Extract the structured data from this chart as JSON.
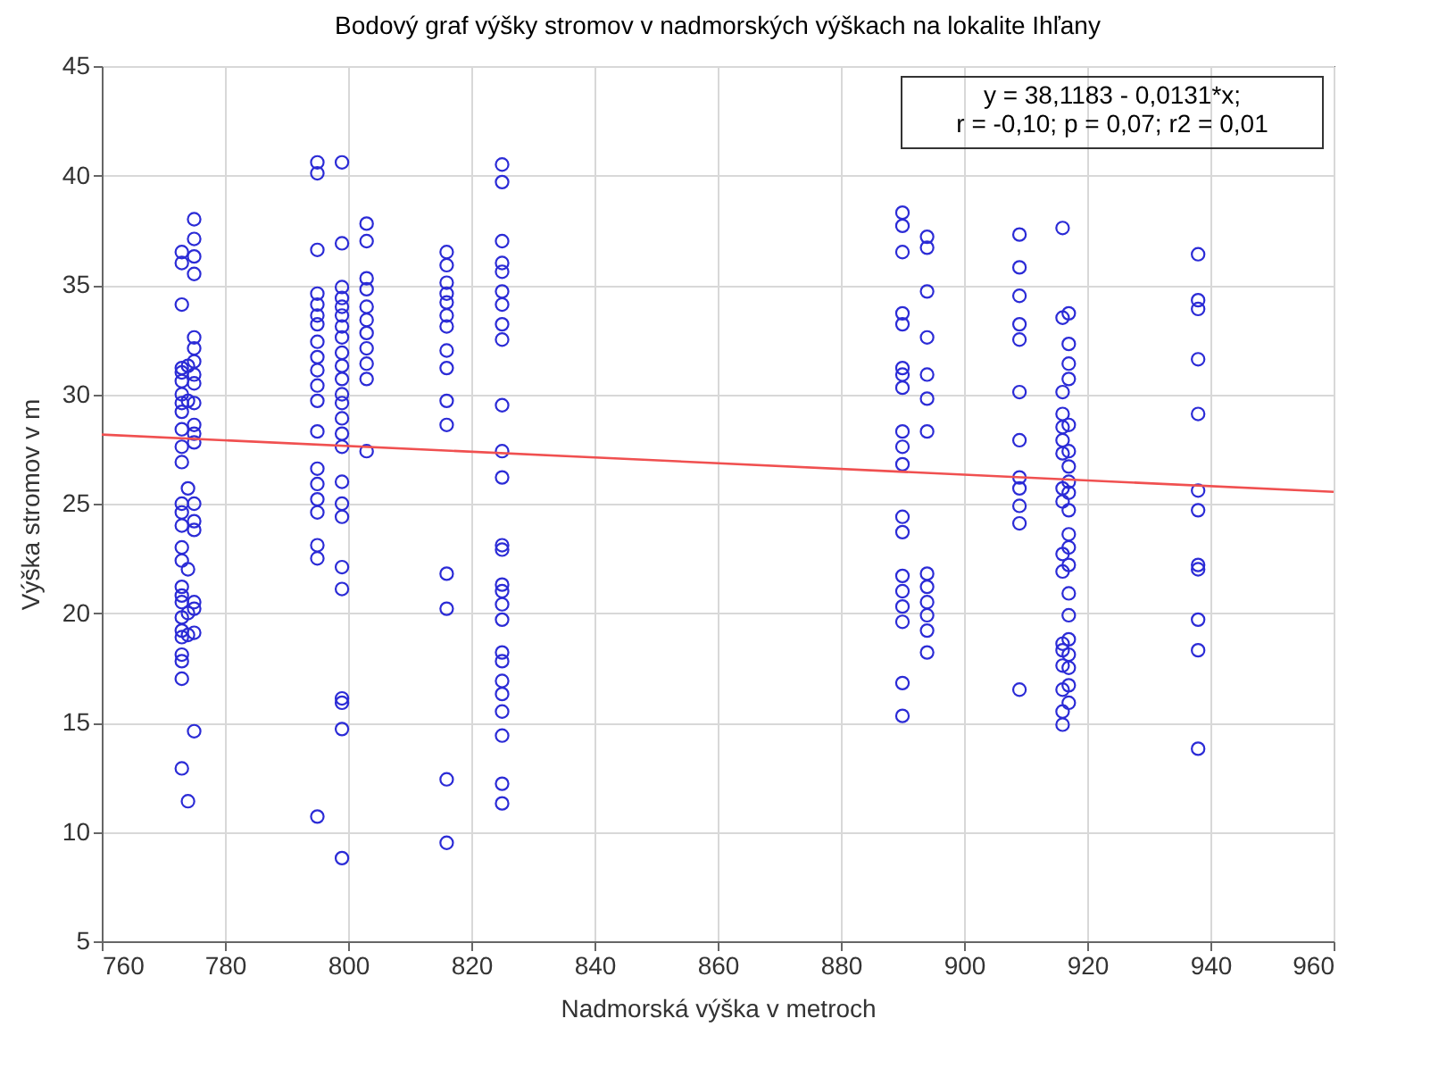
{
  "chart_data": {
    "type": "scatter",
    "title": "Bodový graf výšky stromov v nadmorských výškach na lokalite Ihľany",
    "xlabel": "Nadmorská výška v metroch",
    "ylabel": "Výška stromov v m",
    "annotations": [
      "y = 38,1183 - 0,0131*x;",
      "r = -0,10; p = 0,07; r2 = 0,01"
    ],
    "xlim": [
      760,
      960
    ],
    "xticks": [
      760,
      780,
      800,
      820,
      840,
      860,
      880,
      900,
      920,
      940,
      960
    ],
    "ylim": [
      5,
      45
    ],
    "yticks": [
      5,
      10,
      15,
      20,
      25,
      30,
      35,
      40,
      45
    ],
    "grid": true,
    "marker": "circle",
    "series": [
      {
        "color": "#2b2bd6",
        "x": [
          773,
          773,
          773,
          773,
          773,
          773,
          773,
          773,
          773,
          773,
          773,
          773,
          773,
          773,
          773,
          773,
          773,
          773,
          773,
          773,
          773,
          773,
          773,
          773,
          773,
          773,
          773,
          774,
          774,
          774,
          774,
          774,
          774,
          774
        ],
        "values": [
          36.5,
          36.0,
          34.1,
          31.2,
          31.0,
          30.6,
          30.0,
          29.6,
          29.2,
          28.4,
          27.6,
          26.9,
          25.0,
          24.6,
          24.0,
          23.0,
          22.4,
          21.2,
          20.8,
          20.5,
          19.8,
          19.2,
          18.9,
          18.1,
          17.8,
          17.0,
          12.9,
          11.4,
          31.3,
          29.7,
          25.7,
          22.0,
          20.0,
          19.0
        ]
      },
      {
        "color": "#2b2bd6",
        "x": [
          775,
          775,
          775,
          775,
          775,
          775,
          775,
          775,
          775,
          775,
          775,
          775,
          775,
          775,
          775,
          775,
          775,
          775,
          775,
          775
        ],
        "values": [
          38.0,
          37.1,
          36.3,
          35.5,
          32.6,
          32.1,
          31.5,
          30.9,
          30.5,
          29.6,
          28.6,
          28.2,
          27.8,
          25.0,
          24.2,
          23.8,
          20.5,
          20.2,
          19.1,
          14.6
        ]
      },
      {
        "color": "#2b2bd6",
        "x": [
          795,
          795,
          795,
          795,
          795,
          795,
          795,
          795,
          795,
          795,
          795,
          795,
          795,
          795,
          795,
          795,
          795,
          795,
          795,
          795
        ],
        "values": [
          40.6,
          40.1,
          36.6,
          34.6,
          34.1,
          33.6,
          33.2,
          32.4,
          31.7,
          31.1,
          30.4,
          29.7,
          28.3,
          26.6,
          25.9,
          25.2,
          24.6,
          23.1,
          22.5,
          10.7
        ]
      },
      {
        "color": "#2b2bd6",
        "x": [
          799,
          799,
          799,
          799,
          799,
          799,
          799,
          799,
          799,
          799,
          799,
          799,
          799,
          799,
          799,
          799,
          799,
          799,
          799,
          799,
          799,
          799,
          799,
          799,
          799
        ],
        "values": [
          40.6,
          36.9,
          34.9,
          34.4,
          34.0,
          33.6,
          33.1,
          32.6,
          31.9,
          31.3,
          30.7,
          30.0,
          29.6,
          28.9,
          28.2,
          27.6,
          26.0,
          25.0,
          24.4,
          22.1,
          21.1,
          16.1,
          15.9,
          14.7,
          8.8
        ]
      },
      {
        "color": "#2b2bd6",
        "x": [
          803,
          803,
          803,
          803,
          803,
          803,
          803,
          803,
          803,
          803,
          803
        ],
        "values": [
          37.8,
          37.0,
          35.3,
          34.8,
          34.0,
          33.4,
          32.8,
          32.1,
          31.4,
          30.7,
          27.4
        ]
      },
      {
        "color": "#2b2bd6",
        "x": [
          816,
          816,
          816,
          816,
          816,
          816,
          816,
          816,
          816,
          816,
          816,
          816,
          816,
          816,
          816
        ],
        "values": [
          36.5,
          35.9,
          35.1,
          34.6,
          34.2,
          33.6,
          33.1,
          32.0,
          31.2,
          29.7,
          28.6,
          21.8,
          20.2,
          12.4,
          9.5
        ]
      },
      {
        "color": "#2b2bd6",
        "x": [
          825,
          825,
          825,
          825,
          825,
          825,
          825,
          825,
          825,
          825,
          825,
          825,
          825,
          825,
          825,
          825,
          825,
          825,
          825,
          825,
          825,
          825,
          825,
          825,
          825,
          825
        ],
        "values": [
          40.5,
          39.7,
          37.0,
          36.0,
          35.6,
          34.7,
          34.1,
          33.2,
          32.5,
          29.5,
          27.4,
          26.2,
          23.1,
          22.9,
          21.3,
          21.0,
          20.4,
          19.7,
          18.2,
          17.8,
          16.9,
          16.3,
          15.5,
          14.4,
          12.2,
          11.3
        ]
      },
      {
        "color": "#2b2bd6",
        "x": [
          890,
          890,
          890,
          890,
          890,
          890,
          890,
          890,
          890,
          890,
          890,
          890,
          890,
          890,
          890,
          890,
          890,
          890,
          890
        ],
        "values": [
          38.3,
          37.7,
          36.5,
          33.7,
          33.2,
          31.2,
          30.9,
          30.3,
          28.3,
          27.6,
          26.8,
          24.4,
          23.7,
          21.7,
          21.0,
          20.3,
          19.6,
          16.8,
          15.3
        ]
      },
      {
        "color": "#2b2bd6",
        "x": [
          894,
          894,
          894,
          894,
          894,
          894,
          894,
          894,
          894,
          894,
          894,
          894,
          894
        ],
        "values": [
          37.2,
          36.7,
          34.7,
          32.6,
          30.9,
          29.8,
          28.3,
          21.8,
          21.2,
          20.5,
          19.9,
          19.2,
          18.2
        ]
      },
      {
        "color": "#2b2bd6",
        "x": [
          909,
          909,
          909,
          909,
          909,
          909,
          909,
          909,
          909,
          909,
          909,
          909
        ],
        "values": [
          37.3,
          35.8,
          34.5,
          33.2,
          32.5,
          30.1,
          27.9,
          26.2,
          25.7,
          24.9,
          24.1,
          16.5
        ]
      },
      {
        "color": "#2b2bd6",
        "x": [
          916,
          916,
          916,
          916,
          916,
          916,
          916,
          916,
          916,
          916,
          916,
          916,
          916,
          916,
          916,
          916,
          916
        ],
        "values": [
          37.6,
          33.5,
          30.1,
          29.1,
          28.5,
          27.9,
          27.3,
          25.7,
          25.1,
          22.7,
          21.9,
          18.6,
          18.3,
          17.6,
          16.5,
          15.5,
          14.9
        ]
      },
      {
        "color": "#2b2bd6",
        "x": [
          917,
          917,
          917,
          917,
          917,
          917,
          917,
          917,
          917,
          917,
          917,
          917,
          917,
          917,
          917,
          917,
          917,
          917,
          917,
          917
        ],
        "values": [
          33.7,
          32.3,
          31.4,
          30.7,
          28.6,
          27.4,
          26.7,
          26.0,
          25.5,
          24.7,
          23.6,
          23.0,
          22.2,
          20.9,
          19.9,
          18.8,
          18.1,
          17.5,
          16.7,
          15.9
        ]
      },
      {
        "color": "#2b2bd6",
        "x": [
          938,
          938,
          938,
          938,
          938,
          938,
          938,
          938,
          938,
          938,
          938,
          938
        ],
        "values": [
          36.4,
          34.3,
          33.9,
          31.6,
          29.1,
          25.6,
          24.7,
          22.2,
          22.0,
          19.7,
          18.3,
          13.8
        ]
      },
      {
        "type": "line",
        "marker": "none",
        "color": "#f05050",
        "x": [
          760,
          960
        ],
        "values": [
          28.16,
          25.54
        ]
      }
    ]
  }
}
